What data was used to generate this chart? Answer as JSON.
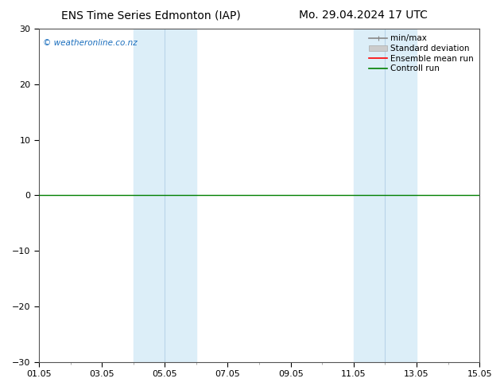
{
  "title_left": "ENS Time Series Edmonton (IAP)",
  "title_right": "Mo. 29.04.2024 17 UTC",
  "ylim": [
    -30,
    30
  ],
  "yticks": [
    -30,
    -20,
    -10,
    0,
    10,
    20,
    30
  ],
  "xtick_labels": [
    "01.05",
    "03.05",
    "05.05",
    "07.05",
    "09.05",
    "11.05",
    "13.05",
    "15.05"
  ],
  "xtick_positions": [
    0,
    2,
    4,
    6,
    8,
    10,
    12,
    14
  ],
  "xlim": [
    0,
    14
  ],
  "shaded_regions": [
    {
      "start": 3.0,
      "end": 4.0,
      "color": "#dceef8"
    },
    {
      "start": 4.0,
      "end": 5.0,
      "color": "#dceef8"
    },
    {
      "start": 10.0,
      "end": 11.0,
      "color": "#dceef8"
    },
    {
      "start": 11.0,
      "end": 12.0,
      "color": "#dceef8"
    }
  ],
  "shade_band1_start": 3.0,
  "shade_band1_mid": 4.0,
  "shade_band1_end": 5.0,
  "shade_band2_start": 10.0,
  "shade_band2_mid": 11.0,
  "shade_band2_end": 12.0,
  "shade_color": "#dceef8",
  "shade_separator_color": "#b8d4e8",
  "watermark": "© weatheronline.co.nz",
  "watermark_color": "#1a6ebd",
  "legend_items": [
    {
      "label": "min/max",
      "color": "#888888",
      "lw": 1.2
    },
    {
      "label": "Standard deviation",
      "color": "#cccccc",
      "lw": 6
    },
    {
      "label": "Ensemble mean run",
      "color": "#ff0000",
      "lw": 1.2
    },
    {
      "label": "Controll run",
      "color": "#008000",
      "lw": 1.2
    }
  ],
  "hline_y": 0,
  "hline_color": "#008000",
  "hline_lw": 1.0,
  "background_color": "#ffffff",
  "title_fontsize": 10,
  "tick_fontsize": 8,
  "legend_fontsize": 7.5
}
